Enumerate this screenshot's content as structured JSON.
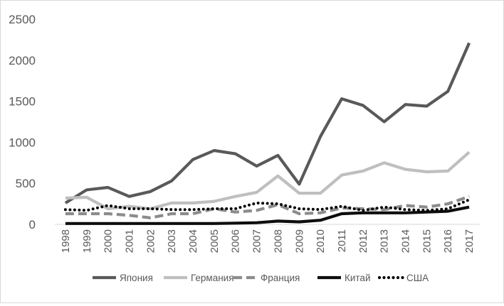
{
  "chart_data": {
    "type": "line",
    "title": "",
    "xlabel": "",
    "ylabel": "",
    "ylim": [
      0,
      2500
    ],
    "yticks": [
      0,
      500,
      1000,
      1500,
      2000,
      2500
    ],
    "grid": "none",
    "legend_position": "bottom",
    "x": [
      "1998",
      "1999",
      "2000",
      "2001",
      "2002",
      "2003",
      "2004",
      "2005",
      "2006",
      "2007",
      "2008",
      "2009",
      "2010",
      "2011",
      "2012",
      "2013",
      "2014",
      "2015",
      "2016",
      "2017"
    ],
    "series": [
      {
        "name": "Япония",
        "color": "#595959",
        "style": "solid",
        "values": [
          260,
          420,
          450,
          340,
          400,
          530,
          790,
          900,
          860,
          710,
          840,
          490,
          1070,
          1530,
          1450,
          1250,
          1460,
          1440,
          1620,
          2210
        ]
      },
      {
        "name": "Германия",
        "color": "#bfbfbf",
        "style": "solid",
        "values": [
          320,
          330,
          190,
          220,
          190,
          260,
          260,
          280,
          340,
          390,
          590,
          380,
          380,
          600,
          650,
          750,
          670,
          640,
          650,
          880
        ]
      },
      {
        "name": "Франция",
        "color": "#8c8c8c",
        "style": "dashed",
        "values": [
          130,
          130,
          130,
          110,
          80,
          130,
          130,
          190,
          150,
          170,
          240,
          130,
          140,
          200,
          190,
          180,
          230,
          210,
          250,
          340
        ]
      },
      {
        "name": "Китай",
        "color": "#0d0d0d",
        "style": "solid",
        "values": [
          10,
          10,
          10,
          10,
          10,
          10,
          10,
          10,
          15,
          20,
          40,
          30,
          50,
          130,
          140,
          140,
          140,
          150,
          160,
          210
        ]
      },
      {
        "name": "США",
        "color": "#000000",
        "style": "dotted",
        "values": [
          180,
          170,
          230,
          190,
          190,
          180,
          180,
          190,
          190,
          260,
          250,
          190,
          180,
          220,
          170,
          210,
          180,
          170,
          190,
          300
        ]
      }
    ]
  }
}
